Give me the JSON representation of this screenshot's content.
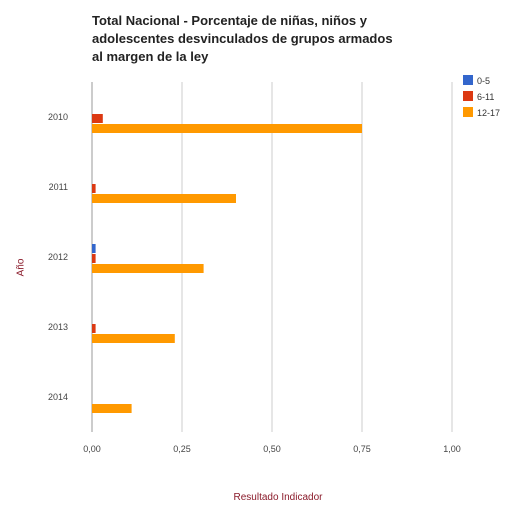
{
  "chart_data": {
    "type": "bar",
    "orientation": "horizontal",
    "title_lines": [
      "Total Nacional - Porcentaje de niñas, niños y",
      "adolescentes desvinculados de grupos armados",
      "al margen de la ley"
    ],
    "xlabel": "Resultado Indicador",
    "ylabel": "Año",
    "categories": [
      "2010",
      "2011",
      "2012",
      "2013",
      "2014"
    ],
    "series": [
      {
        "name": "0-5",
        "color": "#3366cc",
        "values": [
          0,
          0,
          0.01,
          0,
          0
        ]
      },
      {
        "name": "6-11",
        "color": "#dc3912",
        "values": [
          0.03,
          0.01,
          0.01,
          0.01,
          0
        ]
      },
      {
        "name": "12-17",
        "color": "#ff9900",
        "values": [
          0.75,
          0.4,
          0.31,
          0.23,
          0.11
        ]
      }
    ],
    "xlim": [
      0,
      1
    ],
    "xticks": [
      0,
      0.25,
      0.5,
      0.75,
      1.0
    ],
    "xtick_labels": [
      "0,00",
      "0,25",
      "0,50",
      "0,75",
      "1,00"
    ],
    "grid": true,
    "legend_position": "top-right"
  }
}
